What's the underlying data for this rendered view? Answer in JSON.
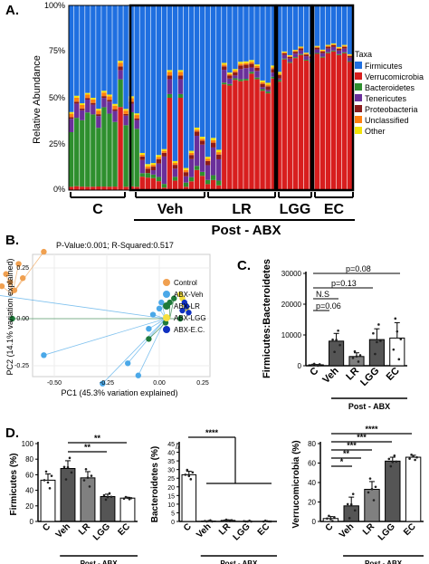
{
  "panelA": {
    "letter": "A.",
    "ylabel": "Relative Abundance",
    "yticks": [
      "0%",
      "25%",
      "50%",
      "75%",
      "100%"
    ],
    "legend_title": "Taxa",
    "legend": [
      {
        "label": "Firmicutes",
        "color": "#1f6fe0"
      },
      {
        "label": "Verrucomicrobia",
        "color": "#d81e1e"
      },
      {
        "label": "Bacteroidetes",
        "color": "#2e8f2e"
      },
      {
        "label": "Tenericutes",
        "color": "#6a2f9a"
      },
      {
        "label": "Proteobacteria",
        "color": "#8b1a1a"
      },
      {
        "label": "Unclassified",
        "color": "#ff7f0e"
      },
      {
        "label": "Other",
        "color": "#f2e20a"
      }
    ],
    "groups": [
      "C",
      "Veh",
      "LR",
      "LGG",
      "EC"
    ],
    "post_label": "Post - ABX"
  },
  "panelB": {
    "letter": "B.",
    "stats": "P-Value:0.001; R-Squared:0.517",
    "xlabel": "PC1 (45.3% variation explained)",
    "ylabel": "PC2 (14.1% variation explained)",
    "xticks": [
      "-0.50",
      "-0.25",
      "0.00",
      "0.25"
    ],
    "yticks": [
      "0.25",
      "0.00",
      "-0.25"
    ],
    "legend": [
      {
        "label": "Control",
        "color": "#f0a050"
      },
      {
        "label": "ABX-Veh",
        "color": "#4aa8e8"
      },
      {
        "label": "ABX-LR",
        "color": "#1e7a3a"
      },
      {
        "label": "ABX-LGG",
        "color": "#f5e040"
      },
      {
        "label": "ABX-E.C.",
        "color": "#1030c0"
      }
    ]
  },
  "panelC": {
    "letter": "C.",
    "ylabel": "Firmicutes:Bacteroidetes",
    "yticks": [
      "0",
      "10000",
      "20000",
      "30000"
    ],
    "pvalues": [
      "p=0.08",
      "p=0.13",
      "N.S",
      "p=0.06"
    ],
    "groups": [
      "C",
      "Veh",
      "LR",
      "LGG",
      "EC"
    ],
    "post_label": "Post - ABX"
  },
  "panelD": {
    "letter": "D.",
    "post_label": "Post - ABX",
    "groups": [
      "C",
      "Veh",
      "LR",
      "LGG",
      "EC"
    ],
    "firmicutes": {
      "ylabel": "Firmicutes (%)",
      "yticks": [
        "0",
        "20",
        "40",
        "60",
        "80",
        "100"
      ],
      "sig": [
        "**",
        "**"
      ]
    },
    "bacteroidetes": {
      "ylabel": "Bacteroidetes (%)",
      "yticks": [
        "0",
        "5",
        "10",
        "15",
        "20",
        "25",
        "30",
        "35",
        "40",
        "45"
      ],
      "break": "//",
      "sig": [
        "****"
      ]
    },
    "verrucomicrobia": {
      "ylabel": "Verrucomicrobia (%)",
      "yticks": [
        "0",
        "20",
        "40",
        "60",
        "80"
      ],
      "sig": [
        "****",
        "***",
        "***",
        "**",
        "*"
      ]
    }
  },
  "chart_data": [
    {
      "type": "bar",
      "title": "",
      "xlabel": "",
      "ylabel": "Firmicutes:Bacteroidetes",
      "categories": [
        "C",
        "Veh",
        "LR",
        "LGG",
        "EC"
      ],
      "values": [
        300,
        8000,
        3000,
        8500,
        9000
      ],
      "errors": [
        100,
        2500,
        1200,
        3500,
        5000
      ],
      "ylim": [
        0,
        30000
      ]
    },
    {
      "type": "bar",
      "title": "",
      "xlabel": "",
      "ylabel": "Firmicutes (%)",
      "categories": [
        "C",
        "Veh",
        "LR",
        "LGG",
        "EC"
      ],
      "values": [
        53,
        68,
        56,
        32,
        30
      ],
      "errors": [
        8,
        10,
        8,
        3,
        1
      ],
      "ylim": [
        0,
        100
      ]
    },
    {
      "type": "bar",
      "title": "",
      "xlabel": "",
      "ylabel": "Bacteroidetes (%)",
      "categories": [
        "C",
        "Veh",
        "LR",
        "LGG",
        "EC"
      ],
      "values": [
        27,
        0.2,
        0.6,
        0,
        0
      ],
      "errors": [
        2,
        0.1,
        0.3,
        0,
        0
      ],
      "ylim": [
        0,
        45
      ]
    },
    {
      "type": "bar",
      "title": "",
      "xlabel": "",
      "ylabel": "Verrucomicrobia (%)",
      "categories": [
        "C",
        "Veh",
        "LR",
        "LGG",
        "EC"
      ],
      "values": [
        3,
        16,
        33,
        62,
        66
      ],
      "errors": [
        2,
        9,
        8,
        4,
        2
      ],
      "ylim": [
        0,
        80
      ]
    }
  ]
}
